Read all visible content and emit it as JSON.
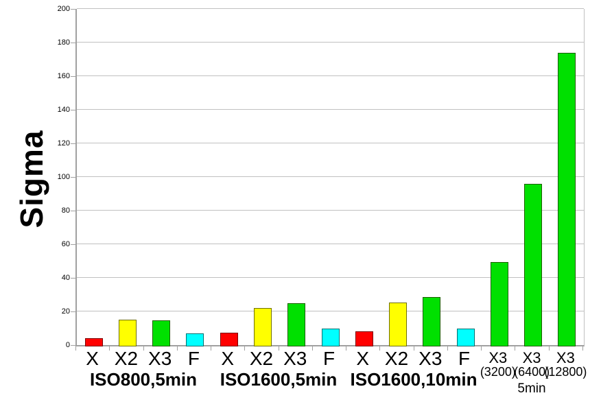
{
  "chart_data": {
    "type": "bar",
    "title": "",
    "ylabel": "Sigma",
    "xlabel": "",
    "ylim": [
      0,
      200
    ],
    "ytick_step": 20,
    "ytick_labels": [
      "0",
      "20",
      "40",
      "60",
      "80",
      "100",
      "120",
      "140",
      "160",
      "180",
      "200"
    ],
    "grid": true,
    "legend": "none",
    "background_color": "#ffffff",
    "gridline_color": "#c0c0c0",
    "axis_color": "#a0a0a0",
    "bar_fill_colors": {
      "red": "#ff0000",
      "yellow": "#ffff00",
      "green": "#00e000",
      "cyan": "#00ffff"
    },
    "bar_border_colors": {
      "red": "#7a0000",
      "yellow": "#6f6f00",
      "green": "#1b5e00",
      "cyan": "#006f6f"
    },
    "groups": [
      {
        "label": "ISO800,5min",
        "bars": [
          {
            "label": "X",
            "color": "red",
            "value": 4
          },
          {
            "label": "X2",
            "color": "yellow",
            "value": 15
          },
          {
            "label": "X3",
            "color": "green",
            "value": 14.5
          },
          {
            "label": "F",
            "color": "cyan",
            "value": 7
          }
        ]
      },
      {
        "label": "ISO1600,5min",
        "bars": [
          {
            "label": "X",
            "color": "red",
            "value": 7.5
          },
          {
            "label": "X2",
            "color": "yellow",
            "value": 22
          },
          {
            "label": "X3",
            "color": "green",
            "value": 25
          },
          {
            "label": "F",
            "color": "cyan",
            "value": 10
          }
        ]
      },
      {
        "label": "ISO1600,10min",
        "bars": [
          {
            "label": "X",
            "color": "red",
            "value": 8
          },
          {
            "label": "X2",
            "color": "yellow",
            "value": 25.5
          },
          {
            "label": "X3",
            "color": "green",
            "value": 28.5
          },
          {
            "label": "F",
            "color": "cyan",
            "value": 10
          }
        ]
      },
      {
        "label": "5min",
        "small": true,
        "bars": [
          {
            "label": "X3",
            "sublabel": "(3200)",
            "color": "green",
            "value": 49.5
          },
          {
            "label": "X3",
            "sublabel": "(6400)",
            "color": "green",
            "value": 96
          },
          {
            "label": "X3",
            "sublabel": "(12800)",
            "color": "green",
            "value": 174
          }
        ]
      }
    ]
  }
}
